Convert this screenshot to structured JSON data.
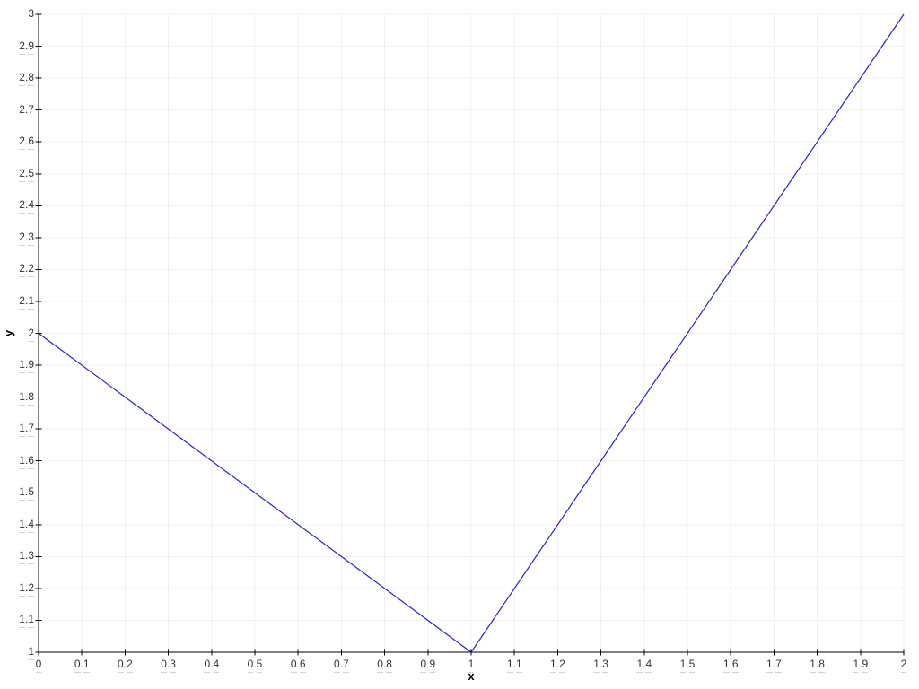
{
  "page": {
    "background": "#ffffff"
  },
  "chart_data": {
    "type": "line",
    "title": "",
    "xlabel": "x",
    "ylabel": "y",
    "xlim": [
      0,
      2
    ],
    "ylim": [
      1,
      3
    ],
    "xtick_step": 0.1,
    "ytick_step": 0.1,
    "xticks": [
      0,
      0.1,
      0.2,
      0.3,
      0.4,
      0.5,
      0.6,
      0.7,
      0.8,
      0.9,
      1,
      1.1,
      1.2,
      1.3,
      1.4,
      1.5,
      1.6,
      1.7,
      1.8,
      1.9,
      2
    ],
    "yticks": [
      1,
      1.1,
      1.2,
      1.3,
      1.4,
      1.5,
      1.6,
      1.7,
      1.8,
      1.9,
      2,
      2.1,
      2.2,
      2.3,
      2.4,
      2.5,
      2.6,
      2.7,
      2.8,
      2.9,
      3
    ],
    "grid": true,
    "legend_position": "none",
    "series": [
      {
        "color": "#2222d6",
        "points": [
          [
            0,
            2
          ],
          [
            1,
            1
          ],
          [
            2,
            3
          ]
        ]
      }
    ],
    "style": {
      "axis_color": "#000000",
      "grid_color": "#f0f0f1",
      "tick_color": "#000000",
      "tick_label_color": "#333333",
      "tick_underdash_color": "#d4d4d4",
      "background": "#ffffff"
    }
  }
}
